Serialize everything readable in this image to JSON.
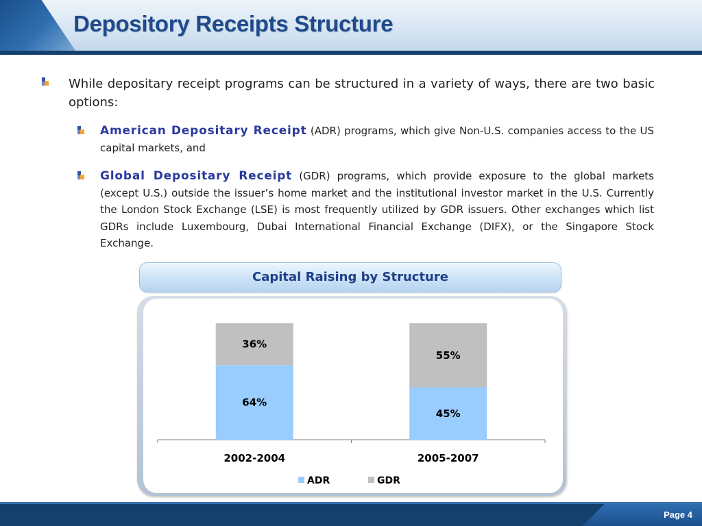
{
  "header": {
    "title": "Depository Receipts Structure"
  },
  "intro": {
    "text": "While depositary receipt programs can be structured in a variety of ways, there are two basic options:"
  },
  "options": [
    {
      "term": "American Depositary Receipt",
      "text": " (ADR) programs, which give Non-U.S. companies access to the US capital markets, and"
    },
    {
      "term": "Global Depositary Receipt",
      "text": " (GDR) programs, which provide exposure to the global markets (except U.S.) outside the issuer’s home market and the institutional investor market in the U.S. Currently the London Stock Exchange (LSE) is most frequently utilized by GDR issuers. Other exchanges which list GDRs include Luxembourg, Dubai International Financial Exchange (DIFX), or the Singapore Stock Exchange."
    }
  ],
  "chart_title": "Capital Raising by Structure",
  "chart_data": {
    "type": "bar",
    "stacked": true,
    "categories": [
      "2002-2004",
      "2005-2007"
    ],
    "series": [
      {
        "name": "ADR",
        "values": [
          64,
          45
        ],
        "labels": [
          "64%",
          "45%"
        ],
        "color": "#99ccff"
      },
      {
        "name": "GDR",
        "values": [
          36,
          55
        ],
        "labels": [
          "36%",
          "55%"
        ],
        "color": "#c0c0c0"
      }
    ],
    "ylim": [
      0,
      100
    ],
    "legend": "bottom",
    "grid": false
  },
  "footer": {
    "page": "Page 4"
  },
  "colors": {
    "brand_dark": "#15406e",
    "title": "#1f4a8c",
    "term": "#2b3a9c"
  }
}
